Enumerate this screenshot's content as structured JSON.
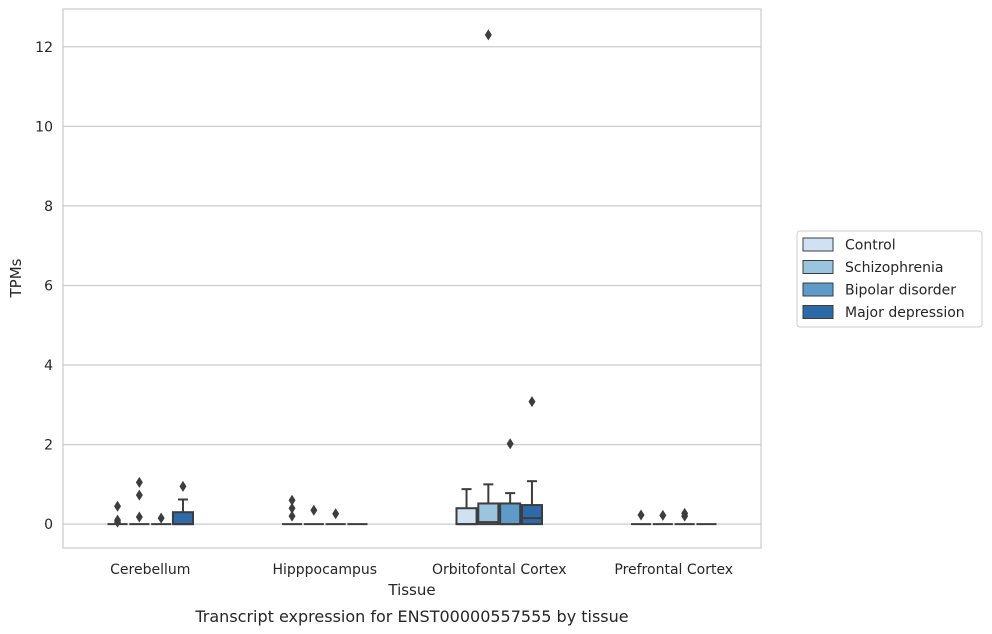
{
  "chart_data": {
    "type": "boxplot",
    "caption": "Transcript expression for ENST00000557555 by tissue",
    "xlabel": "Tissue",
    "ylabel": "TPMs",
    "ylim": [
      -0.6,
      12.95
    ],
    "yticks": [
      0,
      2,
      4,
      6,
      8,
      10,
      12
    ],
    "grid": true,
    "legend_placement": "right",
    "categories": [
      "Cerebellum",
      "Hipppocampus",
      "Orbitofontal Cortex",
      "Prefrontal Cortex"
    ],
    "series": [
      {
        "name": "Control",
        "color": "#d0e1f1",
        "boxes": [
          {
            "q1": 0,
            "median": 0,
            "q3": 0,
            "whislo": 0,
            "whishi": 0,
            "fliers": [
              0.45,
              0.1,
              0.05
            ]
          },
          {
            "q1": 0,
            "median": 0,
            "q3": 0,
            "whislo": 0,
            "whishi": 0,
            "fliers": [
              0.6,
              0.4,
              0.2
            ]
          },
          {
            "q1": 0,
            "median": 0,
            "q3": 0.4,
            "whislo": 0,
            "whishi": 0.88,
            "fliers": []
          },
          {
            "q1": 0,
            "median": 0,
            "q3": 0,
            "whislo": 0,
            "whishi": 0,
            "fliers": [
              0.23
            ]
          }
        ]
      },
      {
        "name": "Schizophrenia",
        "color": "#9bc5df",
        "boxes": [
          {
            "q1": 0,
            "median": 0,
            "q3": 0,
            "whislo": 0,
            "whishi": 0,
            "fliers": [
              1.05,
              0.73,
              0.18
            ]
          },
          {
            "q1": 0,
            "median": 0,
            "q3": 0,
            "whislo": 0,
            "whishi": 0,
            "fliers": [
              0.35
            ]
          },
          {
            "q1": 0,
            "median": 0.05,
            "q3": 0.52,
            "whislo": 0,
            "whishi": 1.0,
            "fliers": [
              12.3
            ]
          },
          {
            "q1": 0,
            "median": 0,
            "q3": 0,
            "whislo": 0,
            "whishi": 0,
            "fliers": [
              0.22
            ]
          }
        ]
      },
      {
        "name": "Bipolar disorder",
        "color": "#5d9cc9",
        "boxes": [
          {
            "q1": 0,
            "median": 0,
            "q3": 0,
            "whislo": 0,
            "whishi": 0,
            "fliers": [
              0.15
            ]
          },
          {
            "q1": 0,
            "median": 0,
            "q3": 0,
            "whislo": 0,
            "whishi": 0,
            "fliers": [
              0.26
            ]
          },
          {
            "q1": 0,
            "median": 0,
            "q3": 0.52,
            "whislo": 0,
            "whishi": 0.78,
            "fliers": [
              2.02
            ]
          },
          {
            "q1": 0,
            "median": 0,
            "q3": 0,
            "whislo": 0,
            "whishi": 0,
            "fliers": [
              0.27,
              0.2
            ]
          }
        ]
      },
      {
        "name": "Major depression",
        "color": "#2e6aa8",
        "boxes": [
          {
            "q1": 0,
            "median": 0,
            "q3": 0.3,
            "whislo": 0,
            "whishi": 0.62,
            "fliers": [
              0.95
            ]
          },
          {
            "q1": 0,
            "median": 0,
            "q3": 0,
            "whislo": 0,
            "whishi": 0,
            "fliers": []
          },
          {
            "q1": 0,
            "median": 0.15,
            "q3": 0.48,
            "whislo": 0,
            "whishi": 1.08,
            "fliers": [
              3.08
            ]
          },
          {
            "q1": 0,
            "median": 0,
            "q3": 0,
            "whislo": 0,
            "whishi": 0,
            "fliers": []
          }
        ]
      }
    ]
  }
}
